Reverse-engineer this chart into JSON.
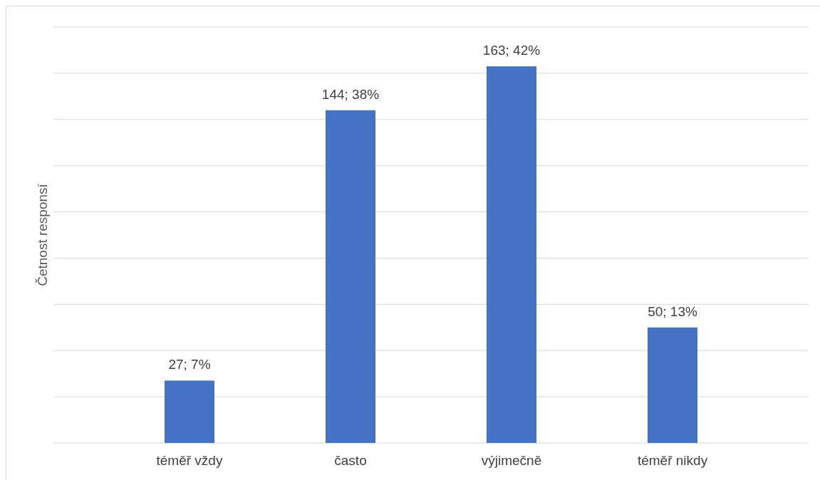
{
  "chart_data": {
    "type": "bar",
    "ylabel": "Četnost responsí",
    "categories": [
      "téměř vždy",
      "často",
      "výjimečně",
      "téměř nikdy"
    ],
    "values": [
      27,
      144,
      163,
      50
    ],
    "color": "#4472c4",
    "value_labels": [
      "27; 7%",
      "144; 38%",
      "163; 42%",
      "50; 13%"
    ],
    "ylim": [
      0,
      180
    ],
    "yticks": [
      {
        "value": 0,
        "label": null
      },
      {
        "value": 20,
        "label": null
      },
      {
        "value": 40,
        "label": null
      },
      {
        "value": 60,
        "label": null
      },
      {
        "value": 80,
        "label": null
      },
      {
        "value": 100,
        "label": null
      },
      {
        "value": 120,
        "label": null
      },
      {
        "value": 140,
        "label": null
      },
      {
        "value": 160,
        "label": null
      },
      {
        "value": 180,
        "label": null
      }
    ],
    "grid": "y",
    "tick_labels": "x"
  }
}
